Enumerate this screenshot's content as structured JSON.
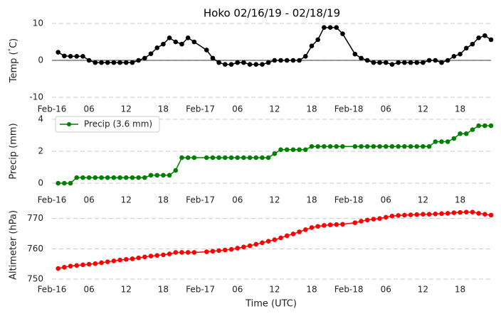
{
  "chart_data": [
    {
      "type": "line",
      "title": "Hoko 02/16/19 - 02/18/19",
      "ylabel": "Temp ($^\\circ$C)",
      "x": [
        1,
        2,
        3,
        4,
        5,
        6,
        7,
        8,
        9,
        10,
        11,
        12,
        13,
        14,
        15,
        16,
        17,
        18,
        19,
        20,
        21,
        22,
        23,
        25,
        26,
        27,
        28,
        29,
        30,
        31,
        32,
        33,
        34,
        35,
        36,
        37,
        38,
        39,
        40,
        41,
        42,
        43,
        44,
        45,
        46,
        47,
        49,
        50,
        51,
        52,
        53,
        54,
        55,
        56,
        57,
        58,
        59,
        60,
        61,
        62,
        63,
        64,
        65,
        66,
        67,
        68,
        69,
        70,
        71
      ],
      "series": [
        {
          "color": "#000000",
          "values": [
            2.2,
            1.2,
            1.1,
            1.1,
            1.1,
            0,
            -0.6,
            -0.6,
            -0.6,
            -0.6,
            -0.6,
            -0.6,
            -0.6,
            0,
            0.6,
            1.8,
            3.4,
            4.4,
            6.1,
            5.0,
            4.4,
            6.1,
            5.0,
            2.8,
            0.6,
            -0.6,
            -1.1,
            -1.1,
            -0.6,
            -0.6,
            -1.1,
            -1.1,
            -1.1,
            -0.6,
            0,
            0,
            0,
            0,
            0,
            1.1,
            3.9,
            5.6,
            8.9,
            8.9,
            8.9,
            7.2,
            1.7,
            0.6,
            0,
            -0.6,
            -0.6,
            -0.6,
            -1.1,
            -0.6,
            -0.6,
            -0.6,
            -0.6,
            -0.6,
            0,
            0,
            -0.6,
            0,
            1.1,
            1.7,
            3.3,
            4.4,
            6.1,
            6.7,
            5.6
          ]
        }
      ],
      "xlim": [
        0,
        71
      ],
      "xticks": [
        {
          "value": 0,
          "label": "Feb-16"
        },
        {
          "value": 6,
          "label": "06"
        },
        {
          "value": 12,
          "label": "12"
        },
        {
          "value": 18,
          "label": "18"
        },
        {
          "value": 24,
          "label": "Feb-17"
        },
        {
          "value": 30,
          "label": "06"
        },
        {
          "value": 36,
          "label": "12"
        },
        {
          "value": 42,
          "label": "18"
        },
        {
          "value": 48,
          "label": "Feb-18"
        },
        {
          "value": 54,
          "label": "06"
        },
        {
          "value": 60,
          "label": "12"
        },
        {
          "value": 66,
          "label": "18"
        }
      ],
      "ylim": [
        -10,
        10
      ],
      "yticks": [
        -10,
        0,
        10
      ],
      "grid": true,
      "zero_line": true
    },
    {
      "type": "line",
      "ylabel": "Precip (mm)",
      "x": [
        1,
        2,
        3,
        4,
        5,
        6,
        7,
        8,
        9,
        10,
        11,
        12,
        13,
        14,
        15,
        16,
        17,
        18,
        19,
        20,
        21,
        22,
        23,
        25,
        26,
        27,
        28,
        29,
        30,
        31,
        32,
        33,
        34,
        35,
        36,
        37,
        38,
        39,
        40,
        41,
        42,
        43,
        44,
        45,
        46,
        47,
        49,
        50,
        51,
        52,
        53,
        54,
        55,
        56,
        57,
        58,
        59,
        60,
        61,
        62,
        63,
        64,
        65,
        66,
        67,
        68,
        69,
        70,
        71
      ],
      "series": [
        {
          "name": "Precip (3.6 mm)",
          "color": "#008000",
          "values": [
            0,
            0,
            0,
            0.35,
            0.35,
            0.35,
            0.35,
            0.35,
            0.35,
            0.35,
            0.35,
            0.35,
            0.35,
            0.35,
            0.35,
            0.5,
            0.5,
            0.5,
            0.5,
            0.8,
            1.6,
            1.6,
            1.6,
            1.6,
            1.6,
            1.6,
            1.6,
            1.6,
            1.6,
            1.6,
            1.6,
            1.6,
            1.6,
            1.6,
            1.85,
            2.1,
            2.1,
            2.1,
            2.1,
            2.1,
            2.3,
            2.3,
            2.3,
            2.3,
            2.3,
            2.3,
            2.3,
            2.3,
            2.3,
            2.3,
            2.3,
            2.3,
            2.3,
            2.3,
            2.3,
            2.3,
            2.3,
            2.3,
            2.3,
            2.6,
            2.6,
            2.6,
            2.8,
            3.1,
            3.1,
            3.35,
            3.6,
            3.6,
            3.6
          ]
        }
      ],
      "xlim": [
        0,
        71
      ],
      "xticks": [
        {
          "value": 0,
          "label": "Feb-16"
        },
        {
          "value": 6,
          "label": "06"
        },
        {
          "value": 12,
          "label": "12"
        },
        {
          "value": 18,
          "label": "18"
        },
        {
          "value": 24,
          "label": "Feb-17"
        },
        {
          "value": 30,
          "label": "06"
        },
        {
          "value": 36,
          "label": "12"
        },
        {
          "value": 42,
          "label": "18"
        },
        {
          "value": 48,
          "label": "Feb-18"
        },
        {
          "value": 54,
          "label": "06"
        },
        {
          "value": 60,
          "label": "12"
        },
        {
          "value": 66,
          "label": "18"
        }
      ],
      "ylim": [
        0,
        4
      ],
      "yticks": [
        0,
        2,
        4
      ],
      "grid": true,
      "legend": "upper left"
    },
    {
      "type": "line",
      "ylabel": "Altimeter (hPa)",
      "xlabel": "Time (UTC)",
      "x": [
        1,
        2,
        3,
        4,
        5,
        6,
        7,
        8,
        9,
        10,
        11,
        12,
        13,
        14,
        15,
        16,
        17,
        18,
        19,
        20,
        21,
        22,
        23,
        25,
        26,
        27,
        28,
        29,
        30,
        31,
        32,
        33,
        34,
        35,
        36,
        37,
        38,
        39,
        40,
        41,
        42,
        43,
        44,
        45,
        46,
        47,
        49,
        50,
        51,
        52,
        53,
        54,
        55,
        56,
        57,
        58,
        59,
        60,
        61,
        62,
        63,
        64,
        65,
        66,
        67,
        68,
        69,
        70,
        71
      ],
      "series": [
        {
          "color": "#ff0000",
          "values": [
            753.5,
            753.9,
            754.3,
            754.5,
            754.7,
            754.9,
            755.1,
            755.4,
            755.7,
            756.0,
            756.3,
            756.5,
            756.7,
            757.0,
            757.3,
            757.6,
            757.8,
            758.0,
            758.3,
            758.8,
            758.8,
            758.8,
            758.8,
            759.0,
            759.2,
            759.4,
            759.6,
            759.8,
            760.2,
            760.6,
            761.0,
            761.5,
            762.0,
            762.5,
            763.0,
            763.6,
            764.3,
            764.9,
            765.6,
            766.3,
            767.0,
            767.4,
            767.7,
            767.9,
            768.0,
            768.1,
            768.6,
            769.1,
            769.5,
            769.8,
            770.0,
            770.4,
            770.8,
            771.0,
            771.1,
            771.2,
            771.3,
            771.4,
            771.4,
            771.5,
            771.6,
            771.7,
            771.9,
            772.0,
            772.1,
            772.1,
            771.7,
            771.4,
            771.1
          ]
        }
      ],
      "xlim": [
        0,
        71
      ],
      "xticks": [
        {
          "value": 0,
          "label": "Feb-16"
        },
        {
          "value": 6,
          "label": "06"
        },
        {
          "value": 12,
          "label": "12"
        },
        {
          "value": 18,
          "label": "18"
        },
        {
          "value": 24,
          "label": "Feb-17"
        },
        {
          "value": 30,
          "label": "06"
        },
        {
          "value": 36,
          "label": "12"
        },
        {
          "value": 42,
          "label": "18"
        },
        {
          "value": 48,
          "label": "Feb-18"
        },
        {
          "value": 54,
          "label": "06"
        },
        {
          "value": 60,
          "label": "12"
        },
        {
          "value": 66,
          "label": "18"
        }
      ],
      "ylim": [
        750,
        772.5
      ],
      "yticks": [
        750,
        760,
        770
      ],
      "grid": true
    }
  ]
}
